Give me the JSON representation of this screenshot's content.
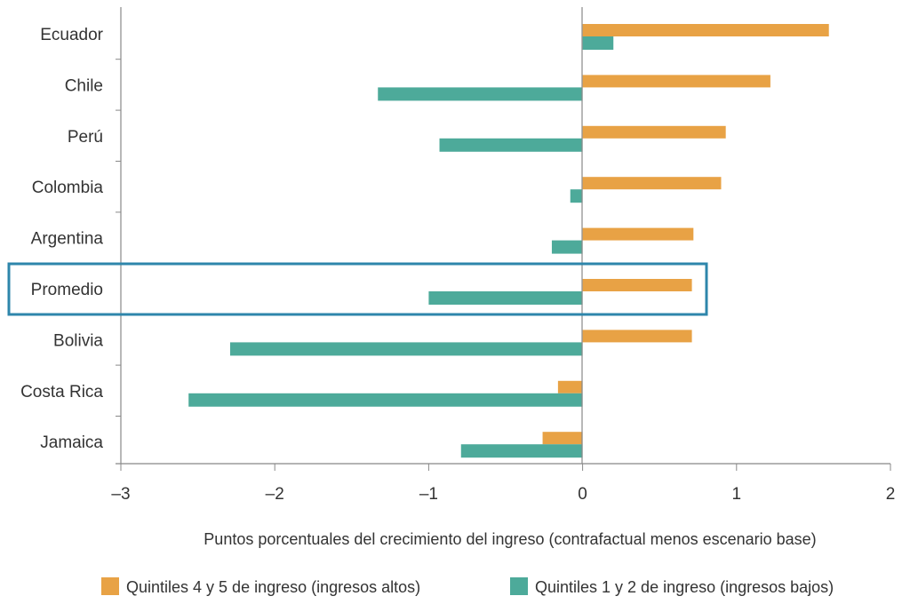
{
  "chart_data": {
    "type": "bar",
    "orientation": "horizontal",
    "categories": [
      "Ecuador",
      "Chile",
      "Perú",
      "Colombia",
      "Argentina",
      "Promedio",
      "Bolivia",
      "Costa Rica",
      "Jamaica"
    ],
    "series": [
      {
        "name": "Quintiles 4 y 5 de ingreso (ingresos altos)",
        "color": "#E8A245",
        "values": [
          1.6,
          1.22,
          0.93,
          0.9,
          0.72,
          0.71,
          0.71,
          -0.16,
          -0.26
        ]
      },
      {
        "name": "Quintiles 1 y 2 de ingreso (ingresos bajos)",
        "color": "#4DAA9A",
        "values": [
          0.2,
          -1.33,
          -0.93,
          -0.08,
          -0.2,
          -1.0,
          -2.29,
          -2.56,
          -0.79
        ]
      }
    ],
    "xlabel": "Puntos porcentuales del crecimiento del ingreso (contrafactual menos escenario base)",
    "xlim": [
      -3,
      2
    ],
    "xticks": [
      "–3",
      "–2",
      "–1",
      "0",
      "1",
      "2"
    ],
    "highlight": {
      "category": "Promedio",
      "color": "#2E86AB"
    },
    "grid": false,
    "legend_position": "bottom"
  }
}
